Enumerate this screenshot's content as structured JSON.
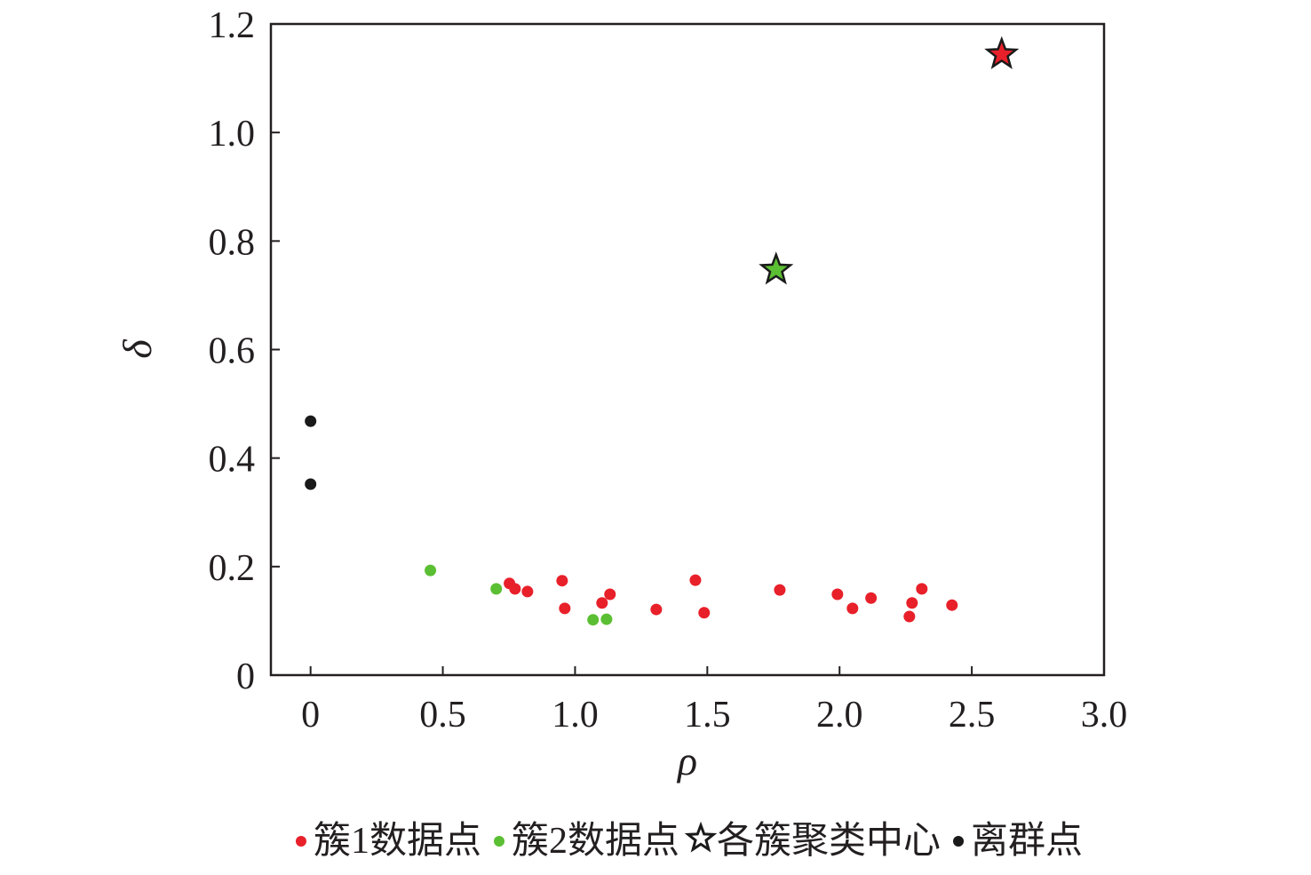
{
  "chart_data": {
    "type": "scatter",
    "x_label": "ρ",
    "y_label": "δ",
    "xlim": [
      -0.15,
      3.0
    ],
    "ylim": [
      0,
      1.2
    ],
    "xticks": [
      0,
      0.5,
      {
        "value": 1.0,
        "label": "1.0"
      },
      1.5,
      {
        "value": 2.0,
        "label": "2.0"
      },
      2.5,
      {
        "value": 3.0,
        "label": "3.0"
      }
    ],
    "yticks": [
      0,
      0.2,
      0.4,
      0.6,
      0.8,
      {
        "value": 1.0,
        "label": "1.0"
      },
      1.2
    ],
    "grid": false,
    "legend": "bottom",
    "series": [
      {
        "name": "簇1数据点",
        "color": "#e8202a",
        "marker": "circle",
        "x": [
          0.752,
          0.773,
          0.82,
          0.951,
          0.961,
          1.102,
          1.132,
          1.307,
          1.455,
          1.488,
          1.774,
          1.992,
          2.049,
          2.119,
          2.264,
          2.274,
          2.311,
          2.425
        ],
        "values": [
          0.169,
          0.159,
          0.154,
          0.174,
          0.123,
          0.133,
          0.149,
          0.121,
          0.175,
          0.115,
          0.157,
          0.149,
          0.123,
          0.142,
          0.108,
          0.133,
          0.159,
          0.129
        ]
      },
      {
        "name": "簇2数据点",
        "color": "#5bbf33",
        "marker": "circle",
        "x": [
          0.453,
          0.702,
          1.068,
          1.119
        ],
        "values": [
          0.193,
          0.159,
          0.102,
          0.103
        ]
      },
      {
        "name": "各簇聚类中心",
        "color": "#1a1a1a",
        "marker": "star",
        "point_colors": [
          "#5bbf33",
          "#e8202a"
        ],
        "x": [
          1.76,
          2.613
        ],
        "values": [
          0.747,
          1.144
        ]
      },
      {
        "name": "离群点",
        "color": "#1a1a1a",
        "marker": "circle",
        "x": [
          0,
          0
        ],
        "values": [
          0.468,
          0.352
        ]
      }
    ]
  }
}
